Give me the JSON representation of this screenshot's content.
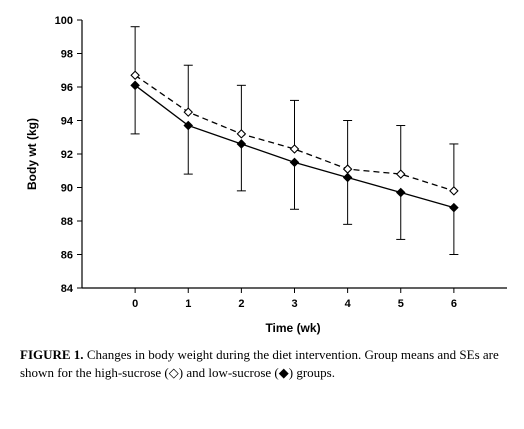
{
  "chart_data": {
    "type": "line",
    "xlabel": "Time (wk)",
    "ylabel": "Body wt (kg)",
    "xlim": [
      -1,
      7
    ],
    "ylim": [
      84,
      100
    ],
    "x": [
      0,
      1,
      2,
      3,
      4,
      5,
      6
    ],
    "x_ticks": [
      "0",
      "1",
      "2",
      "3",
      "4",
      "5",
      "6"
    ],
    "y_ticks": [
      "84",
      "86",
      "88",
      "90",
      "92",
      "94",
      "96",
      "98",
      "100"
    ],
    "grid": false,
    "series": [
      {
        "marker": "open-diamond",
        "line_style": "dashed",
        "values": [
          96.7,
          94.5,
          93.2,
          92.3,
          91.1,
          90.8,
          89.8
        ],
        "error_bar_upper": [
          99.6,
          97.3,
          96.1,
          95.2,
          94.0,
          93.7,
          92.6
        ]
      },
      {
        "marker": "filled-diamond",
        "line_style": "solid",
        "values": [
          96.1,
          93.7,
          92.6,
          91.5,
          90.6,
          89.7,
          88.8
        ],
        "error_bar_lower": [
          93.2,
          90.8,
          89.8,
          88.7,
          87.8,
          86.9,
          86.0
        ]
      }
    ]
  },
  "caption": {
    "label": "FIGURE 1.",
    "text": "Changes in body weight during the diet intervention. Group means and SEs are shown for the high-sucrose (◇) and low-sucrose (◆) groups."
  }
}
